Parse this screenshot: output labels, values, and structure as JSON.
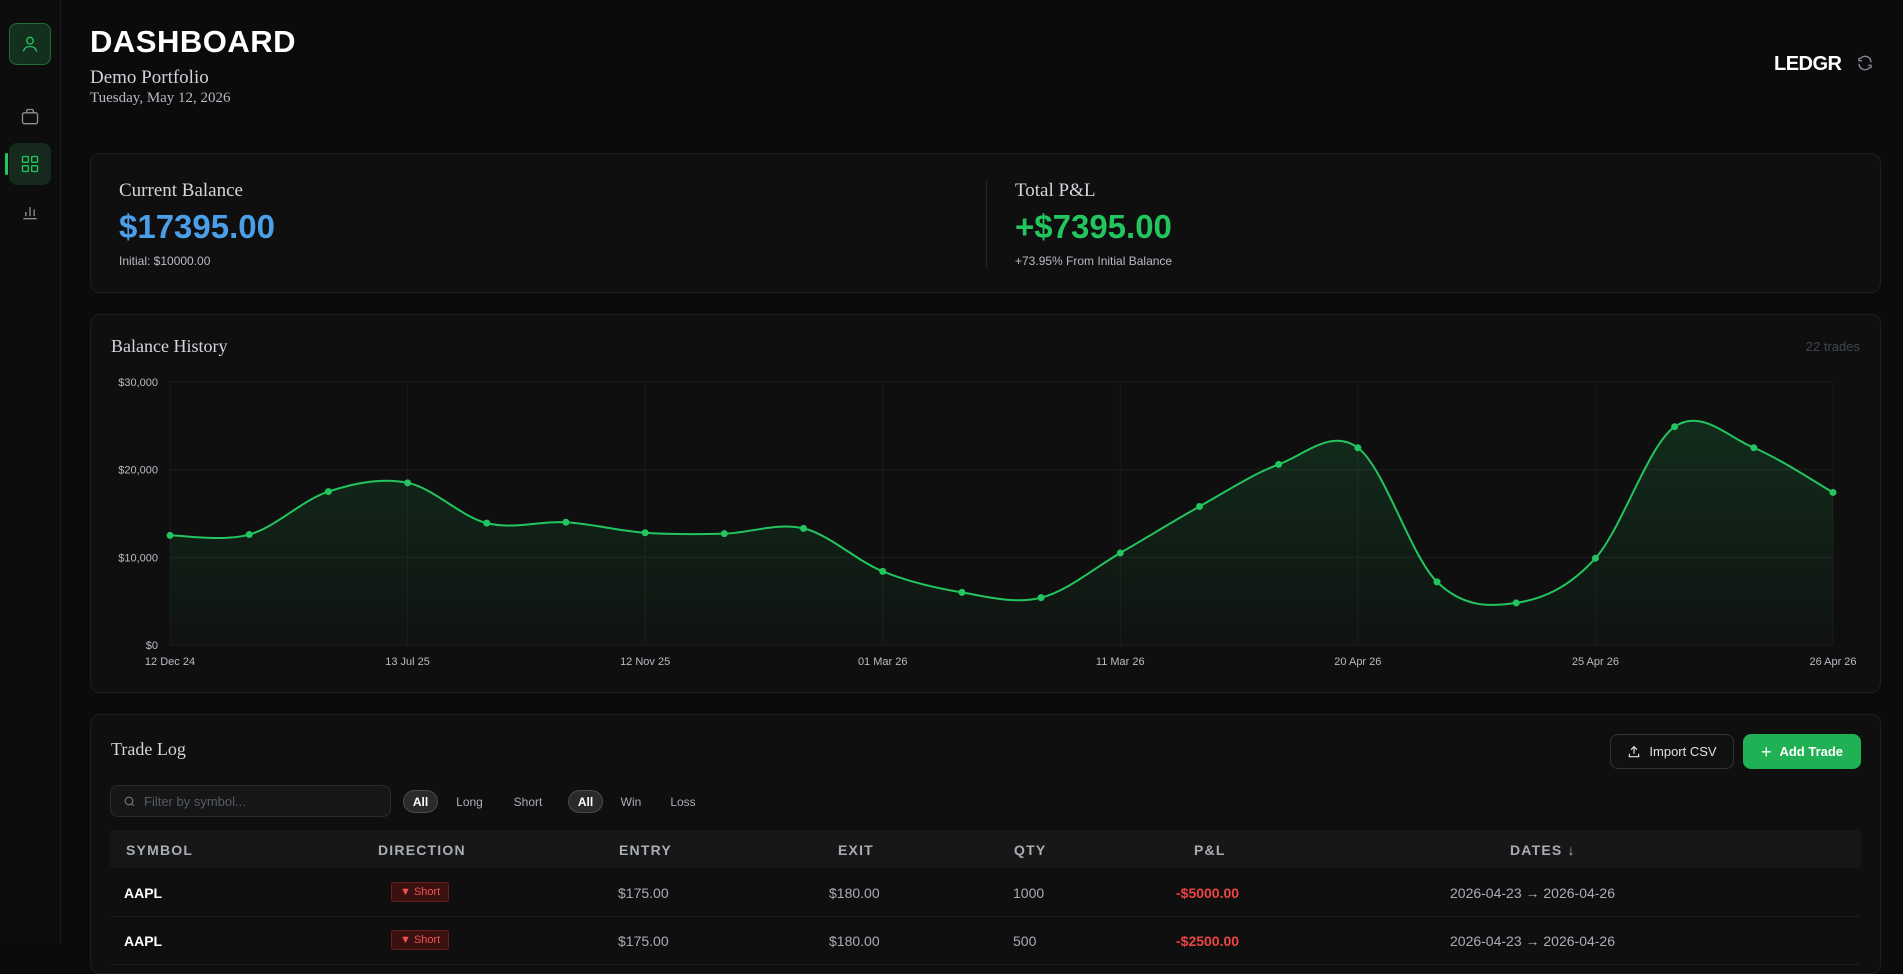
{
  "header": {
    "title": "DASHBOARD",
    "portfolio": "Demo Portfolio",
    "date": "Tuesday, May 12, 2026",
    "brand": "LEDGR"
  },
  "sidebar": {
    "items": [
      {
        "name": "profile",
        "icon": "user-icon"
      },
      {
        "name": "portfolio",
        "icon": "briefcase-icon"
      },
      {
        "name": "dashboard",
        "icon": "grid-icon",
        "active": true
      },
      {
        "name": "analytics",
        "icon": "bar-chart-icon"
      }
    ]
  },
  "balance": {
    "current_label": "Current Balance",
    "current_value": "$17395.00",
    "initial": "Initial: $10000.00",
    "pnl_label": "Total P&L",
    "pnl_value": "+$7395.00",
    "pnl_sub": "+73.95% From Initial Balance"
  },
  "colors": {
    "accent": "#22c55e",
    "balance_blue": "#4a9fe8",
    "loss_red": "#ef4444"
  },
  "balance_history": {
    "title": "Balance History",
    "trade_count": "22 trades"
  },
  "chart_data": {
    "type": "area",
    "title": "Balance History",
    "y_ticks": [
      "$0",
      "$10,000",
      "$20,000",
      "$30,000"
    ],
    "x_ticks": [
      "12 Dec 24",
      "13 Jul 25",
      "12 Nov 25",
      "01 Mar 26",
      "11 Mar 26",
      "20 Apr 26",
      "25 Apr 26",
      "26 Apr 26"
    ],
    "ylim": [
      0,
      30000
    ],
    "values": [
      12500,
      12600,
      17500,
      18500,
      13900,
      14000,
      12800,
      12700,
      13300,
      8400,
      6000,
      5400,
      10500,
      15800,
      20600,
      22500,
      7200,
      4800,
      9900,
      24900,
      22500,
      17400
    ],
    "grid": true
  },
  "trade_log": {
    "title": "Trade Log",
    "import_label": "Import CSV",
    "add_label": "Add Trade",
    "search_placeholder": "Filter by symbol...",
    "direction_filters": [
      "All",
      "Long",
      "Short"
    ],
    "outcome_filters": [
      "All",
      "Win",
      "Loss"
    ],
    "columns": [
      "SYMBOL",
      "DIRECTION",
      "ENTRY",
      "EXIT",
      "QTY",
      "P&L",
      "DATES ↓"
    ],
    "rows": [
      {
        "symbol": "AAPL",
        "direction": "▼ Short",
        "entry": "$175.00",
        "exit": "$180.00",
        "qty": "1000",
        "pnl": "-$5000.00",
        "dates": "2026-04-23 → 2026-04-26"
      },
      {
        "symbol": "AAPL",
        "direction": "▼ Short",
        "entry": "$175.00",
        "exit": "$180.00",
        "qty": "500",
        "pnl": "-$2500.00",
        "dates": "2026-04-23 → 2026-04-26"
      }
    ]
  }
}
